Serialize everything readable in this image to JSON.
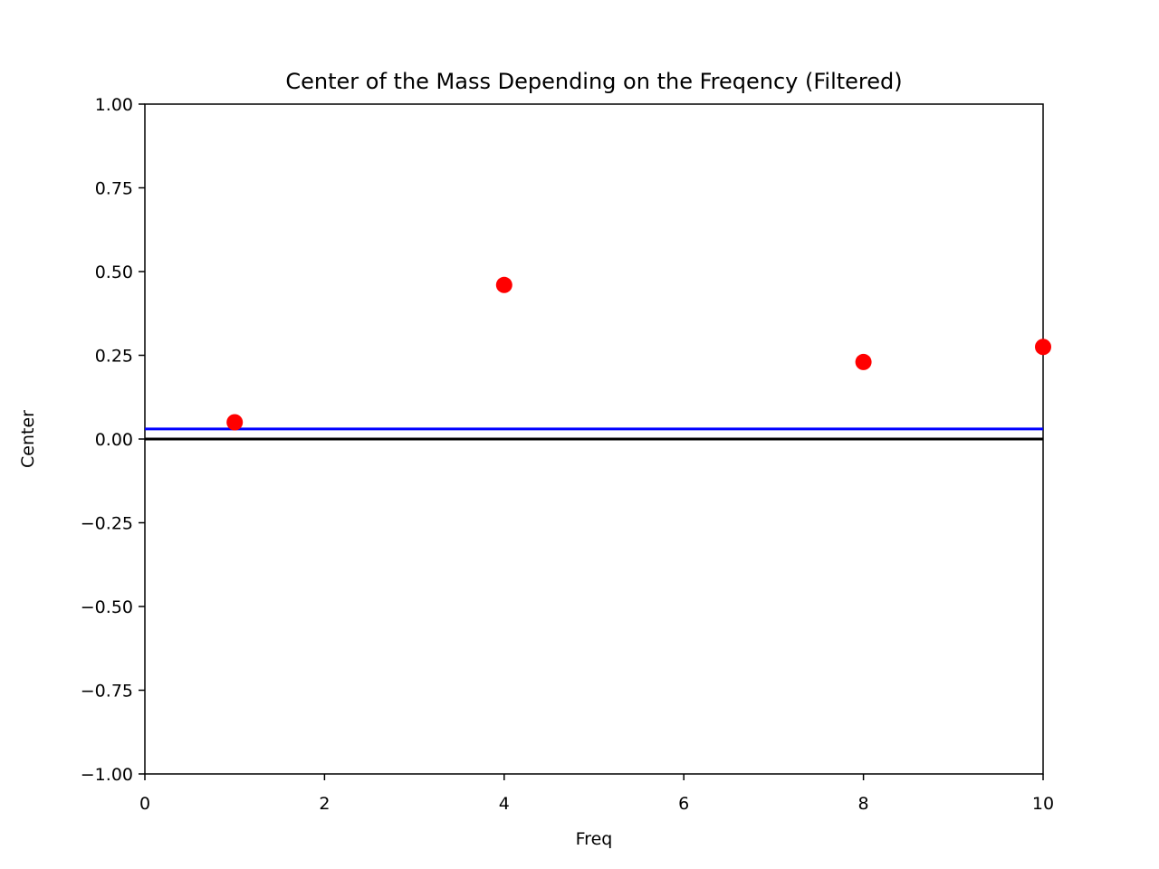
{
  "chart_data": {
    "type": "scatter",
    "title": "Center of the Mass Depending on the Freqency (Filtered)",
    "xlabel": "Freq",
    "ylabel": "Center",
    "xlim": [
      0,
      10
    ],
    "ylim": [
      -1.0,
      1.0
    ],
    "xticks": [
      "0",
      "2",
      "4",
      "6",
      "8",
      "10"
    ],
    "yticks": [
      "1.00",
      "0.75",
      "0.50",
      "0.25",
      "0.00",
      "−0.25",
      "−0.50",
      "−0.75",
      "−1.00"
    ],
    "series": [
      {
        "marker": "circle",
        "color": "#ff0000",
        "x": [
          1,
          4,
          8,
          10
        ],
        "y": [
          0.05,
          0.46,
          0.23,
          0.275
        ]
      }
    ],
    "hlines": [
      {
        "y": 0.03,
        "color": "#0000ff"
      },
      {
        "y": 0.0,
        "color": "#000000"
      }
    ],
    "grid": false,
    "legend": "none"
  }
}
